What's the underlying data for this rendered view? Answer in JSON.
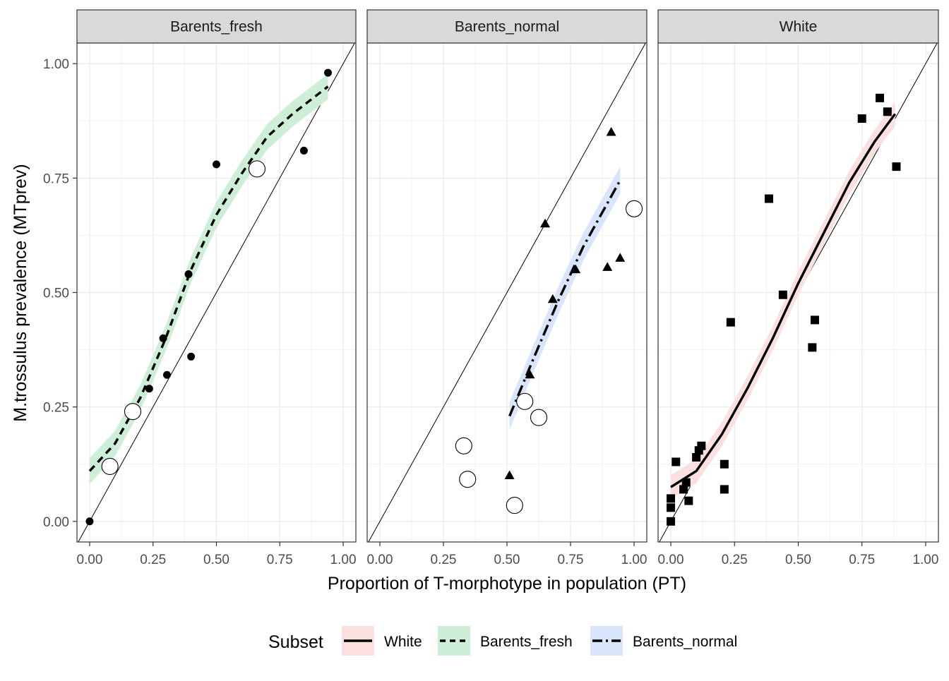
{
  "chart_data": {
    "type": "scatter",
    "xlabel": "Proportion of T-morphotype in population (PT)",
    "ylabel": "M.trossulus prevalence (MTprev)",
    "xlim": [
      -0.05,
      1.05
    ],
    "ylim": [
      -0.045,
      1.045
    ],
    "x_ticks": [
      "0.00",
      "0.25",
      "0.50",
      "0.75",
      "1.00"
    ],
    "y_ticks": [
      "0.00",
      "0.25",
      "0.50",
      "0.75",
      "1.00"
    ],
    "x_tick_values": [
      0,
      0.25,
      0.5,
      0.75,
      1
    ],
    "y_tick_values": [
      0,
      0.25,
      0.5,
      0.75,
      1
    ],
    "grid": true,
    "reference_line": "y = x",
    "legend": {
      "title": "Subset",
      "position": "bottom",
      "entries": [
        {
          "label": "White",
          "linetype": "solid",
          "fill": "#fbe0df"
        },
        {
          "label": "Barents_fresh",
          "linetype": "dashed",
          "fill": "#cdeed7"
        },
        {
          "label": "Barents_normal",
          "linetype": "dotdash",
          "fill": "#d9e5fa"
        }
      ]
    },
    "panels": [
      {
        "strip": "Barents_fresh",
        "shape": "circle",
        "band_color": "#cdeed7",
        "linetype": "dashed",
        "points": [
          [
            0.0,
            0.0
          ],
          [
            0.235,
            0.29
          ],
          [
            0.29,
            0.4
          ],
          [
            0.305,
            0.32
          ],
          [
            0.39,
            0.54
          ],
          [
            0.4,
            0.36
          ],
          [
            0.5,
            0.78
          ],
          [
            0.845,
            0.81
          ],
          [
            0.94,
            0.98
          ]
        ],
        "open_points": [
          [
            0.08,
            0.12
          ],
          [
            0.17,
            0.24
          ],
          [
            0.66,
            0.77
          ]
        ],
        "fit": [
          [
            0.0,
            0.11
          ],
          [
            0.1,
            0.17
          ],
          [
            0.2,
            0.27
          ],
          [
            0.3,
            0.4
          ],
          [
            0.4,
            0.55
          ],
          [
            0.5,
            0.67
          ],
          [
            0.6,
            0.76
          ],
          [
            0.7,
            0.84
          ],
          [
            0.8,
            0.89
          ],
          [
            0.94,
            0.95
          ]
        ],
        "band_halfwidth": 0.028
      },
      {
        "strip": "Barents_normal",
        "shape": "triangle",
        "band_color": "#d9e5fa",
        "linetype": "dotdash",
        "points": [
          [
            0.51,
            0.1
          ],
          [
            0.59,
            0.32
          ],
          [
            0.65,
            0.65
          ],
          [
            0.68,
            0.485
          ],
          [
            0.77,
            0.55
          ],
          [
            0.895,
            0.555
          ],
          [
            0.91,
            0.85
          ],
          [
            0.945,
            0.575
          ]
        ],
        "open_points": [
          [
            0.33,
            0.165
          ],
          [
            0.345,
            0.092
          ],
          [
            0.53,
            0.035
          ],
          [
            0.57,
            0.262
          ],
          [
            0.625,
            0.227
          ],
          [
            1.0,
            0.683
          ]
        ],
        "fit": [
          [
            0.51,
            0.23
          ],
          [
            0.6,
            0.35
          ],
          [
            0.7,
            0.48
          ],
          [
            0.8,
            0.6
          ],
          [
            0.9,
            0.7
          ],
          [
            0.945,
            0.745
          ]
        ],
        "band_halfwidth": 0.03
      },
      {
        "strip": "White",
        "shape": "square",
        "band_color": "#fbe0df",
        "linetype": "solid",
        "points": [
          [
            0.0,
            0.0
          ],
          [
            0.0,
            0.03
          ],
          [
            0.0,
            0.05
          ],
          [
            0.02,
            0.13
          ],
          [
            0.05,
            0.07
          ],
          [
            0.06,
            0.085
          ],
          [
            0.07,
            0.045
          ],
          [
            0.1,
            0.14
          ],
          [
            0.11,
            0.155
          ],
          [
            0.12,
            0.165
          ],
          [
            0.21,
            0.125
          ],
          [
            0.21,
            0.07
          ],
          [
            0.235,
            0.435
          ],
          [
            0.385,
            0.705
          ],
          [
            0.44,
            0.495
          ],
          [
            0.555,
            0.38
          ],
          [
            0.565,
            0.44
          ],
          [
            0.75,
            0.88
          ],
          [
            0.82,
            0.925
          ],
          [
            0.85,
            0.895
          ],
          [
            0.885,
            0.775
          ]
        ],
        "open_points": [],
        "fit": [
          [
            0.0,
            0.075
          ],
          [
            0.1,
            0.11
          ],
          [
            0.2,
            0.19
          ],
          [
            0.3,
            0.29
          ],
          [
            0.4,
            0.4
          ],
          [
            0.5,
            0.52
          ],
          [
            0.6,
            0.63
          ],
          [
            0.7,
            0.74
          ],
          [
            0.8,
            0.83
          ],
          [
            0.88,
            0.89
          ]
        ],
        "band_halfwidth": 0.026
      }
    ]
  }
}
